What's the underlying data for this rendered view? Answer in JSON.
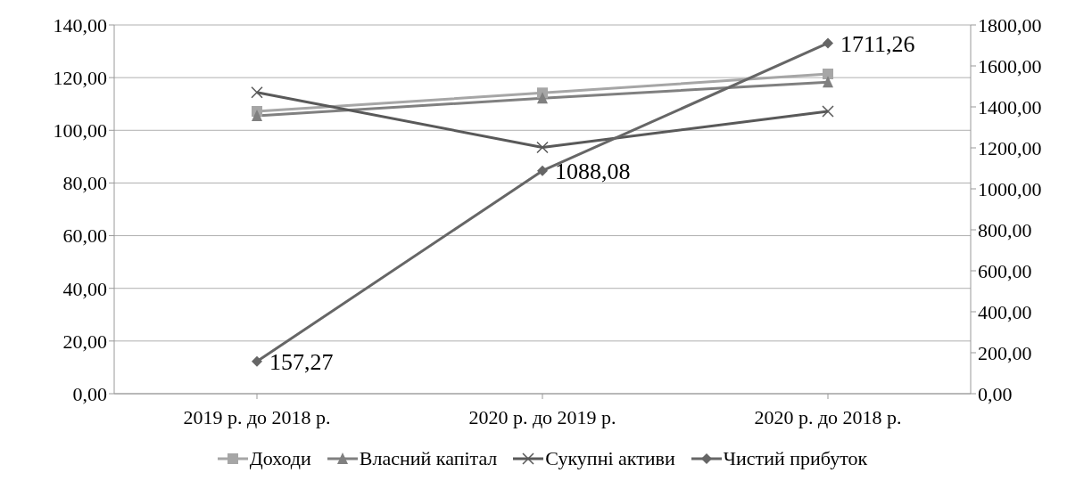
{
  "chart_data": {
    "type": "line",
    "categories": [
      "2019 р. до 2018 р.",
      "2020 р. до 2019 р.",
      "2020 р. до 2018 р."
    ],
    "series": [
      {
        "name": "Доходи",
        "color": "#a6a6a6",
        "marker": "square",
        "values": [
          107.2,
          114.2,
          121.4
        ]
      },
      {
        "name": "Власний капітал",
        "color": "#808080",
        "marker": "triangle",
        "values": [
          105.5,
          112.2,
          118.3
        ]
      },
      {
        "name": "Сукупні активи",
        "color": "#595959",
        "marker": "cross",
        "values": [
          114.4,
          93.5,
          107.2
        ]
      },
      {
        "name": "Чистий прибуток",
        "color": "#666666",
        "marker": "diamond",
        "axis": "y2",
        "values": [
          157.27,
          1088.08,
          1711.26
        ],
        "value_labels": [
          "157,27",
          "1088,08",
          "1711,26"
        ]
      }
    ],
    "ylim": [
      0,
      140
    ],
    "yticks": [
      {
        "value": 0,
        "label": "0,00"
      },
      {
        "value": 20,
        "label": "20,00"
      },
      {
        "value": 40,
        "label": "40,00"
      },
      {
        "value": 60,
        "label": "60,00"
      },
      {
        "value": 80,
        "label": "80,00"
      },
      {
        "value": 100,
        "label": "100,00"
      },
      {
        "value": 120,
        "label": "120,00"
      },
      {
        "value": 140,
        "label": "140,00"
      }
    ],
    "y2lim": [
      0,
      1800
    ],
    "y2ticks": [
      {
        "value": 0,
        "label": "0,00"
      },
      {
        "value": 200,
        "label": "200,00"
      },
      {
        "value": 400,
        "label": "400,00"
      },
      {
        "value": 600,
        "label": "600,00"
      },
      {
        "value": 800,
        "label": "800,00"
      },
      {
        "value": 1000,
        "label": "1000,00"
      },
      {
        "value": 1200,
        "label": "1200,00"
      },
      {
        "value": 1400,
        "label": "1400,00"
      },
      {
        "value": 1600,
        "label": "1600,00"
      },
      {
        "value": 1800,
        "label": "1800,00"
      }
    ],
    "grid": "y",
    "legend": "bottom",
    "line_style": "solid"
  }
}
